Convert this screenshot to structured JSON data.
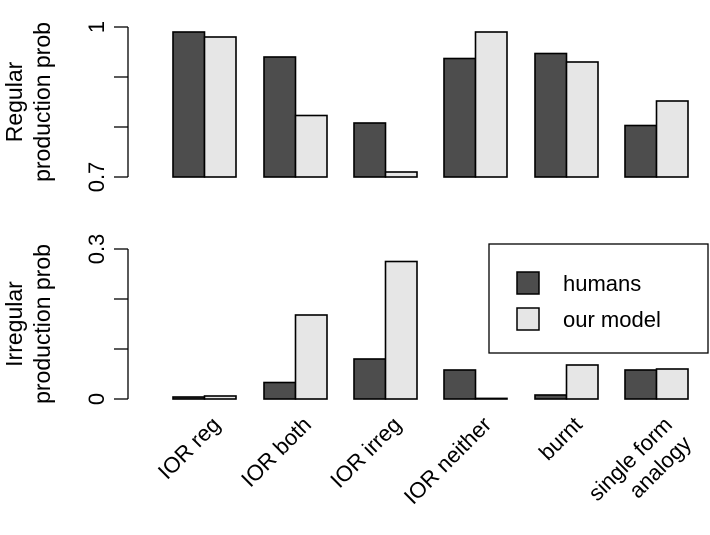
{
  "chart_data": [
    {
      "type": "bar",
      "categories": [
        "IOR reg",
        "IOR both",
        "IOR irreg",
        "IOR neither",
        "burnt",
        "single form\nanalogy"
      ],
      "ylabel": "Regular\nproduction prob",
      "ylim": [
        0.7,
        1.0
      ],
      "ytick_values": [
        0.7,
        0.8,
        0.9,
        1.0
      ],
      "ytick_labels": [
        "0.7",
        "",
        "",
        "1"
      ],
      "series": [
        {
          "name": "humans",
          "values": [
            0.99,
            0.94,
            0.808,
            0.937,
            0.947,
            0.803
          ]
        },
        {
          "name": "our model",
          "values": [
            0.98,
            0.823,
            0.71,
            0.99,
            0.93,
            0.852
          ]
        }
      ]
    },
    {
      "type": "bar",
      "categories": [
        "IOR reg",
        "IOR both",
        "IOR irreg",
        "IOR neither",
        "burnt",
        "single form\nanalogy"
      ],
      "ylabel": "Irregular\nproduction prob",
      "ylim": [
        0,
        0.3
      ],
      "ytick_values": [
        0,
        0.1,
        0.2,
        0.3
      ],
      "ytick_labels": [
        "0",
        "",
        "",
        "0.3"
      ],
      "series": [
        {
          "name": "humans",
          "values": [
            0.004,
            0.033,
            0.08,
            0.058,
            0.008,
            0.058
          ]
        },
        {
          "name": "our model",
          "values": [
            0.006,
            0.168,
            0.275,
            0.0,
            0.068,
            0.06
          ]
        }
      ]
    }
  ],
  "legend": {
    "items": [
      {
        "label": "humans",
        "color": "#4d4d4d"
      },
      {
        "label": "our model",
        "color": "#e6e6e6"
      }
    ]
  },
  "colors": {
    "humans": "#4d4d4d",
    "model": "#e6e6e6",
    "stroke": "#000000"
  }
}
